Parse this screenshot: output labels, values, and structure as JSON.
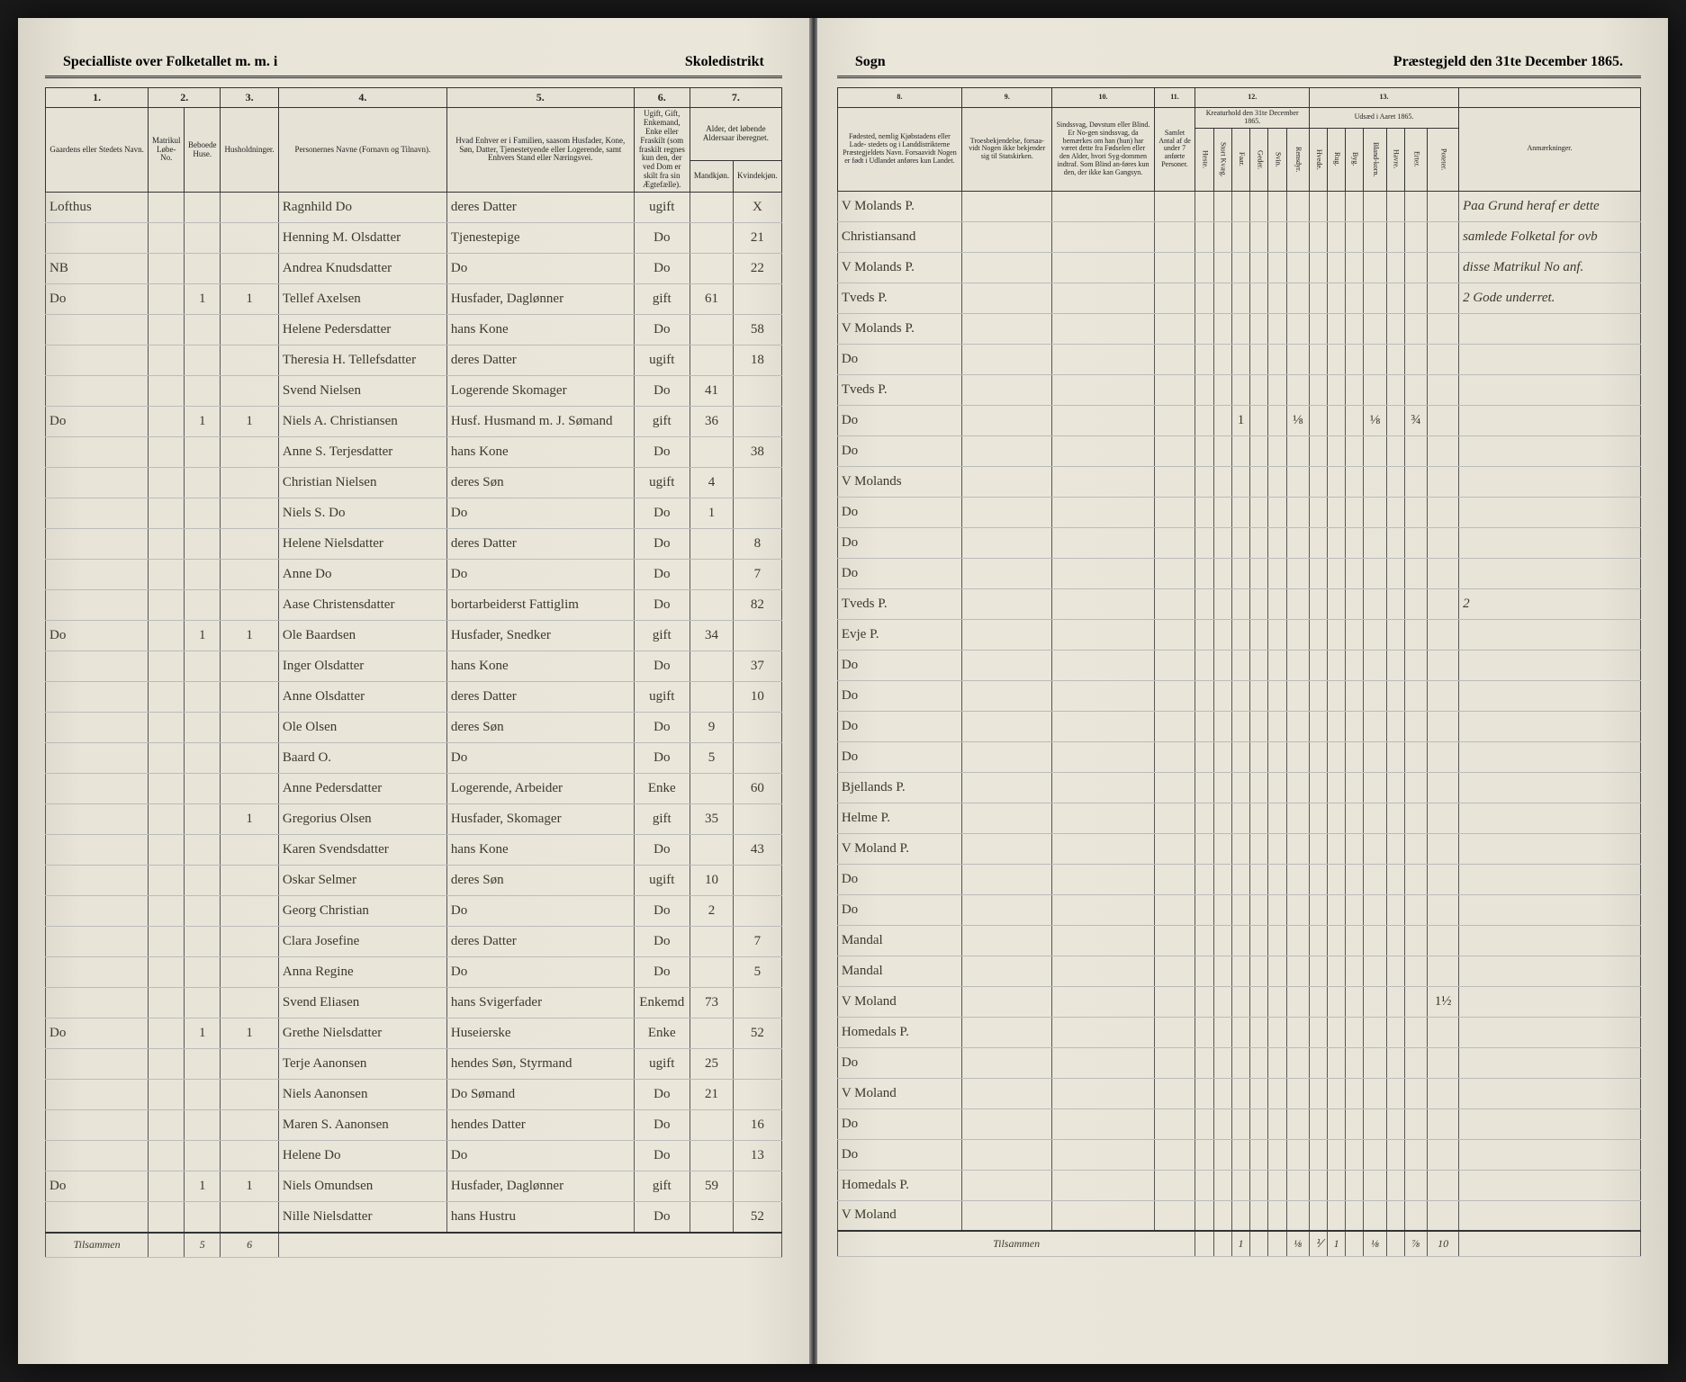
{
  "header": {
    "left_title_a": "Specialliste over Folketallet m. m. i",
    "left_title_b": "Skoledistrikt",
    "right_title_a": "Sogn",
    "right_title_b": "Præstegjeld den 31te December 1865."
  },
  "colnums_left": [
    "1.",
    "2.",
    "3.",
    "4.",
    "5.",
    "6.",
    "7."
  ],
  "colnums_right": [
    "8.",
    "9.",
    "10.",
    "11.",
    "12.",
    "13."
  ],
  "left_headers": {
    "c1": "Gaardens eller Stedets\nNavn.",
    "c2a": "Matrikul Løbe-No.",
    "c2b": "Beboede Huse.",
    "c3": "Husholdninger.",
    "c4": "Personernes Navne (Fornavn og Tilnavn).",
    "c5": "Hvad Enhver er i Familien, saasom Husfader, Kone, Søn, Datter, Tjenestetyende eller Logerende, samt Enhvers Stand eller Næringsvei.",
    "c6": "Ugift, Gift, Enkemand, Enke eller Fraskilt (som fraskilt regnes kun den, der ved Dom er skilt fra sin Ægtefælle).",
    "c7a": "Alder, det løbende Aldersaar iberegnet.",
    "c7b": "Mandkjøn.",
    "c7c": "Kvindekjøn."
  },
  "right_headers": {
    "c8": "Fødested, nemlig Kjøbstadens eller Lade- stedets og i Landdistrikterne Præstegjeldets Navn. Forsaavidt Nogen er født i Udlandet anføres kun Landet.",
    "c9": "Troesbekjendelse, forsaa-vidt Nogen ikke bekjender sig til Statskirken.",
    "c10": "Sindssvag, Døvstum eller Blind. Er No-gen sindssvag, da bemærkes om han (hun) har været dette fra Fødselen eller den Alder, hvori Syg-dommen indtraf. Som Blind an-føres kun den, der ikke kan Gangsyn.",
    "c11": "Samlet Antal af de under 7 anførte Personer.",
    "c12_top": "Kreaturhold den 31te December 1865.",
    "c12_sub": [
      "Heste.",
      "Stort Kvæg.",
      "Faar.",
      "Geder.",
      "Svin.",
      "Rensdyr."
    ],
    "c13_top": "Udsæd i Aaret 1865.",
    "c13_sub": [
      "Hvede.",
      "Rug.",
      "Byg.",
      "Bland-korn.",
      "Havre.",
      "Erter.",
      "Poteter."
    ],
    "c14": "Anmærkninger."
  },
  "rows": [
    {
      "place": "Lofthus",
      "hh": "",
      "fam": "",
      "name": "Ragnhild Do",
      "role": "deres Datter",
      "civil": "ugift",
      "m": "",
      "f": "X",
      "birth": "V Molands P.",
      "remark": "Paa Grund heraf er dette"
    },
    {
      "place": "",
      "hh": "",
      "fam": "",
      "name": "Henning M. Olsdatter",
      "role": "Tjenestepige",
      "civil": "Do",
      "m": "",
      "f": "21",
      "birth": "Christiansand",
      "remark": "samlede Folketal for ovb"
    },
    {
      "place": "NB",
      "hh": "",
      "fam": "",
      "name": "Andrea Knudsdatter",
      "role": "Do",
      "civil": "Do",
      "m": "",
      "f": "22",
      "birth": "V Molands P.",
      "remark": "disse Matrikul No anf."
    },
    {
      "place": "Do",
      "hh": "1",
      "fam": "1",
      "name": "Tellef Axelsen",
      "role": "Husfader, Daglønner",
      "civil": "gift",
      "m": "61",
      "f": "",
      "birth": "Tveds P.",
      "remark": "2 Gode underret."
    },
    {
      "place": "",
      "hh": "",
      "fam": "",
      "name": "Helene Pedersdatter",
      "role": "hans Kone",
      "civil": "Do",
      "m": "",
      "f": "58",
      "birth": "V Molands P.",
      "remark": ""
    },
    {
      "place": "",
      "hh": "",
      "fam": "",
      "name": "Theresia H. Tellefsdatter",
      "role": "deres Datter",
      "civil": "ugift",
      "m": "",
      "f": "18",
      "birth": "Do",
      "remark": ""
    },
    {
      "place": "",
      "hh": "",
      "fam": "",
      "name": "Svend Nielsen",
      "role": "Logerende Skomager",
      "civil": "Do",
      "m": "41",
      "f": "",
      "birth": "Tveds P.",
      "remark": ""
    },
    {
      "place": "Do",
      "hh": "1",
      "fam": "1",
      "name": "Niels A. Christiansen",
      "role": "Husf. Husmand m. J. Sømand",
      "civil": "gift",
      "m": "36",
      "f": "",
      "birth": "Do",
      "c12": [
        "",
        "",
        "1",
        "",
        "",
        "⅛"
      ],
      "c13": [
        "",
        "",
        "",
        "⅛",
        "",
        "¾"
      ],
      "remark": ""
    },
    {
      "place": "",
      "hh": "",
      "fam": "",
      "name": "Anne S. Terjesdatter",
      "role": "hans Kone",
      "civil": "Do",
      "m": "",
      "f": "38",
      "birth": "Do",
      "remark": ""
    },
    {
      "place": "",
      "hh": "",
      "fam": "",
      "name": "Christian Nielsen",
      "role": "deres Søn",
      "civil": "ugift",
      "m": "4",
      "f": "",
      "birth": "V Molands",
      "remark": ""
    },
    {
      "place": "",
      "hh": "",
      "fam": "",
      "name": "Niels S.   Do",
      "role": "Do",
      "civil": "Do",
      "m": "1",
      "f": "",
      "birth": "Do",
      "remark": ""
    },
    {
      "place": "",
      "hh": "",
      "fam": "",
      "name": "Helene Nielsdatter",
      "role": "deres Datter",
      "civil": "Do",
      "m": "",
      "f": "8",
      "birth": "Do",
      "remark": ""
    },
    {
      "place": "",
      "hh": "",
      "fam": "",
      "name": "Anne   Do",
      "role": "Do",
      "civil": "Do",
      "m": "",
      "f": "7",
      "birth": "Do",
      "remark": ""
    },
    {
      "place": "",
      "hh": "",
      "fam": "",
      "name": "Aase Christensdatter",
      "role": "bortarbeiderst Fattiglim",
      "civil": "Do",
      "m": "",
      "f": "82",
      "birth": "Tveds P.",
      "remark": "2"
    },
    {
      "place": "Do",
      "hh": "1",
      "fam": "1",
      "name": "Ole Baardsen",
      "role": "Husfader, Snedker",
      "civil": "gift",
      "m": "34",
      "f": "",
      "birth": "Evje P.",
      "remark": ""
    },
    {
      "place": "",
      "hh": "",
      "fam": "",
      "name": "Inger Olsdatter",
      "role": "hans Kone",
      "civil": "Do",
      "m": "",
      "f": "37",
      "birth": "Do",
      "remark": ""
    },
    {
      "place": "",
      "hh": "",
      "fam": "",
      "name": "Anne Olsdatter",
      "role": "deres Datter",
      "civil": "ugift",
      "m": "",
      "f": "10",
      "birth": "Do",
      "remark": ""
    },
    {
      "place": "",
      "hh": "",
      "fam": "",
      "name": "Ole Olsen",
      "role": "deres Søn",
      "civil": "Do",
      "m": "9",
      "f": "",
      "birth": "Do",
      "remark": ""
    },
    {
      "place": "",
      "hh": "",
      "fam": "",
      "name": "Baard O.",
      "role": "Do",
      "civil": "Do",
      "m": "5",
      "f": "",
      "birth": "Do",
      "remark": ""
    },
    {
      "place": "",
      "hh": "",
      "fam": "",
      "name": "Anne Pedersdatter",
      "role": "Logerende, Arbeider",
      "civil": "Enke",
      "m": "",
      "f": "60",
      "birth": "Bjellands P.",
      "remark": ""
    },
    {
      "place": "",
      "hh": "",
      "fam": "1",
      "name": "Gregorius Olsen",
      "role": "Husfader, Skomager",
      "civil": "gift",
      "m": "35",
      "f": "",
      "birth": "Helme P.",
      "remark": ""
    },
    {
      "place": "",
      "hh": "",
      "fam": "",
      "name": "Karen Svendsdatter",
      "role": "hans Kone",
      "civil": "Do",
      "m": "",
      "f": "43",
      "birth": "V Moland P.",
      "remark": ""
    },
    {
      "place": "",
      "hh": "",
      "fam": "",
      "name": "Oskar Selmer",
      "role": "deres Søn",
      "civil": "ugift",
      "m": "10",
      "f": "",
      "birth": "Do",
      "remark": ""
    },
    {
      "place": "",
      "hh": "",
      "fam": "",
      "name": "Georg Christian",
      "role": "Do",
      "civil": "Do",
      "m": "2",
      "f": "",
      "birth": "Do",
      "remark": ""
    },
    {
      "place": "",
      "hh": "",
      "fam": "",
      "name": "Clara Josefine",
      "role": "deres Datter",
      "civil": "Do",
      "m": "",
      "f": "7",
      "birth": "Mandal",
      "remark": ""
    },
    {
      "place": "",
      "hh": "",
      "fam": "",
      "name": "Anna Regine",
      "role": "Do",
      "civil": "Do",
      "m": "",
      "f": "5",
      "birth": "Mandal",
      "remark": ""
    },
    {
      "place": "",
      "hh": "",
      "fam": "",
      "name": "Svend Eliasen",
      "role": "hans Svigerfader",
      "civil": "Enkemd",
      "m": "73",
      "f": "",
      "birth": "V Moland",
      "c13_last": "1½",
      "remark": ""
    },
    {
      "place": "Do",
      "hh": "1",
      "fam": "1",
      "name": "Grethe Nielsdatter",
      "role": "Huseierske",
      "civil": "Enke",
      "m": "",
      "f": "52",
      "birth": "Homedals P.",
      "remark": ""
    },
    {
      "place": "",
      "hh": "",
      "fam": "",
      "name": "Terje Aanonsen",
      "role": "hendes Søn, Styrmand",
      "civil": "ugift",
      "m": "25",
      "f": "",
      "birth": "Do",
      "remark": ""
    },
    {
      "place": "",
      "hh": "",
      "fam": "",
      "name": "Niels Aanonsen",
      "role": "Do   Sømand",
      "civil": "Do",
      "m": "21",
      "f": "",
      "birth": "V Moland",
      "remark": ""
    },
    {
      "place": "",
      "hh": "",
      "fam": "",
      "name": "Maren S. Aanonsen",
      "role": "hendes Datter",
      "civil": "Do",
      "m": "",
      "f": "16",
      "birth": "Do",
      "remark": ""
    },
    {
      "place": "",
      "hh": "",
      "fam": "",
      "name": "Helene   Do",
      "role": "Do",
      "civil": "Do",
      "m": "",
      "f": "13",
      "birth": "Do",
      "remark": ""
    },
    {
      "place": "Do",
      "hh": "1",
      "fam": "1",
      "name": "Niels Omundsen",
      "role": "Husfader, Daglønner",
      "civil": "gift",
      "m": "59",
      "f": "",
      "birth": "Homedals P.",
      "remark": ""
    },
    {
      "place": "",
      "hh": "",
      "fam": "",
      "name": "Nille Nielsdatter",
      "role": "hans Hustru",
      "civil": "Do",
      "m": "",
      "f": "52",
      "birth": "V Moland",
      "remark": ""
    }
  ],
  "footer": {
    "left_label": "Tilsammen",
    "left_hh": "5",
    "left_fam": "6",
    "right_label": "Tilsammen",
    "c12_tot": [
      "",
      "",
      "1",
      "",
      "",
      "⅛"
    ],
    "c13_tot": [
      "⅟",
      "1",
      "",
      "⅛",
      "",
      "⅞",
      "10"
    ]
  }
}
